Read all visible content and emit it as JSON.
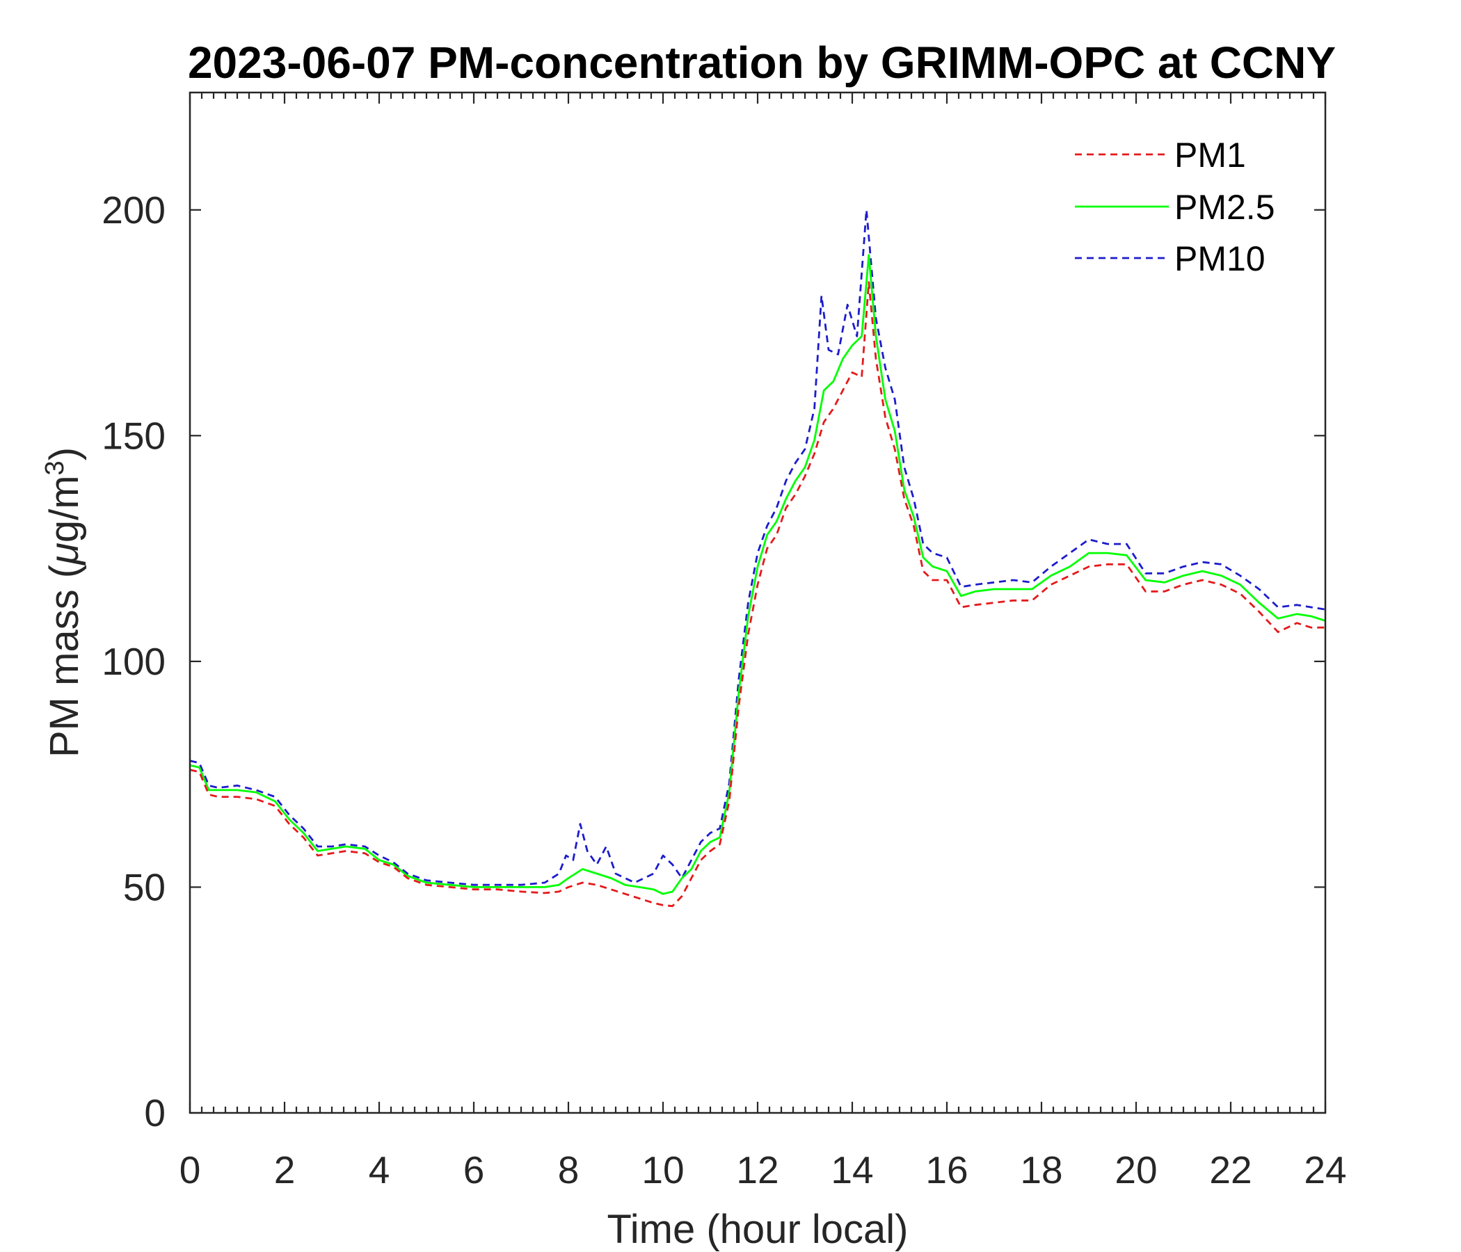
{
  "chart_data": {
    "type": "line",
    "title": "2023-06-07 PM-concentration by GRIMM-OPC at CCNY",
    "xlabel": "Time (hour local)",
    "ylabel": {
      "main": "PM mass (",
      "mu": "μ",
      "unit": "g/m",
      "sup": "3",
      "close": ")"
    },
    "xlim": [
      0,
      24
    ],
    "ylim": [
      0,
      226
    ],
    "xticks": [
      0,
      2,
      4,
      6,
      8,
      10,
      12,
      14,
      16,
      18,
      20,
      22,
      24
    ],
    "yticks": [
      0,
      50,
      100,
      150,
      200
    ],
    "grid": false,
    "legend_position": "top-right",
    "series": [
      {
        "name": "PM1",
        "color": "#e41a1c",
        "dash": "dashed",
        "x": [
          0,
          0.2,
          0.4,
          0.6,
          1.0,
          1.4,
          1.8,
          2.1,
          2.4,
          2.7,
          3.0,
          3.3,
          3.7,
          4.0,
          4.3,
          4.6,
          5.0,
          5.5,
          6.0,
          6.5,
          7.0,
          7.5,
          7.8,
          8.0,
          8.3,
          8.6,
          8.9,
          9.2,
          9.5,
          9.8,
          10.0,
          10.2,
          10.4,
          10.6,
          10.8,
          11.0,
          11.2,
          11.4,
          11.6,
          11.8,
          12.0,
          12.2,
          12.4,
          12.6,
          12.8,
          13.0,
          13.2,
          13.4,
          13.6,
          13.8,
          14.0,
          14.2,
          14.35,
          14.5,
          14.7,
          14.9,
          15.1,
          15.3,
          15.5,
          15.7,
          16.0,
          16.3,
          16.6,
          17.0,
          17.4,
          17.8,
          18.2,
          18.6,
          19.0,
          19.4,
          19.8,
          20.2,
          20.6,
          21.0,
          21.4,
          21.8,
          22.2,
          22.6,
          23.0,
          23.4,
          23.7,
          24.0
        ],
        "values": [
          76,
          75.5,
          70.5,
          70,
          70,
          69.5,
          68,
          64,
          61,
          57,
          57.5,
          58,
          57.5,
          55.5,
          54.5,
          52,
          50.5,
          50,
          49.5,
          49.5,
          49,
          48.7,
          49,
          50,
          51,
          50.5,
          49.5,
          48.5,
          47.5,
          46.5,
          46,
          45.8,
          48,
          52,
          56,
          58,
          59.5,
          69,
          90,
          106,
          117,
          125,
          128,
          134,
          137,
          141,
          146,
          153,
          156,
          160,
          164,
          163,
          184,
          167,
          154,
          147,
          136,
          130,
          120,
          118,
          118,
          112,
          112.5,
          113,
          113.5,
          113.5,
          117,
          119,
          121,
          121.5,
          121.5,
          115.5,
          115.5,
          117,
          118,
          117,
          115,
          111,
          106.5,
          108.5,
          107.5,
          107.5
        ]
      },
      {
        "name": "PM2.5",
        "color": "#00ff00",
        "dash": "solid",
        "x": [
          0,
          0.2,
          0.4,
          0.6,
          1.0,
          1.4,
          1.8,
          2.1,
          2.4,
          2.7,
          3.0,
          3.3,
          3.7,
          4.0,
          4.3,
          4.6,
          5.0,
          5.5,
          6.0,
          6.5,
          7.0,
          7.5,
          7.8,
          8.0,
          8.3,
          8.6,
          8.9,
          9.2,
          9.5,
          9.8,
          10.0,
          10.2,
          10.4,
          10.6,
          10.8,
          11.0,
          11.2,
          11.4,
          11.6,
          11.8,
          12.0,
          12.2,
          12.4,
          12.6,
          12.8,
          13.0,
          13.2,
          13.4,
          13.6,
          13.8,
          14.0,
          14.2,
          14.35,
          14.5,
          14.7,
          14.9,
          15.1,
          15.3,
          15.5,
          15.7,
          16.0,
          16.3,
          16.6,
          17.0,
          17.4,
          17.8,
          18.2,
          18.6,
          19.0,
          19.4,
          19.8,
          20.2,
          20.6,
          21.0,
          21.4,
          21.8,
          22.2,
          22.6,
          23.0,
          23.4,
          23.7,
          24.0
        ],
        "values": [
          77,
          76.5,
          71.5,
          71.5,
          71.5,
          71,
          69,
          65,
          62,
          58,
          58.5,
          59,
          58.5,
          56,
          55,
          52.5,
          51,
          50.5,
          50,
          50,
          50,
          50,
          50.5,
          52,
          54,
          53,
          52,
          50.5,
          50,
          49.5,
          48.5,
          49,
          52,
          54,
          58,
          60,
          61,
          71,
          93,
          110,
          121,
          128,
          131,
          136,
          140,
          143,
          149,
          160,
          162,
          167,
          170,
          172,
          190,
          172,
          158,
          151,
          138,
          132,
          123,
          121,
          120,
          114.5,
          115.5,
          116,
          116,
          116,
          119,
          121,
          124,
          124,
          123.5,
          118,
          117.5,
          119,
          120,
          119,
          117,
          113,
          109.5,
          110.5,
          110,
          109
        ]
      },
      {
        "name": "PM10",
        "color": "#1c1ccc",
        "dash": "dashed",
        "x": [
          0,
          0.2,
          0.4,
          0.6,
          1.0,
          1.4,
          1.8,
          2.1,
          2.4,
          2.7,
          3.0,
          3.3,
          3.7,
          4.0,
          4.3,
          4.6,
          5.0,
          5.5,
          6.0,
          6.5,
          7.0,
          7.5,
          7.8,
          7.95,
          8.1,
          8.25,
          8.4,
          8.6,
          8.8,
          9.0,
          9.2,
          9.4,
          9.6,
          9.8,
          10.0,
          10.2,
          10.4,
          10.6,
          10.8,
          11.0,
          11.2,
          11.4,
          11.6,
          11.8,
          12.0,
          12.2,
          12.4,
          12.6,
          12.8,
          13.0,
          13.2,
          13.35,
          13.5,
          13.7,
          13.9,
          14.1,
          14.3,
          14.5,
          14.7,
          14.9,
          15.1,
          15.3,
          15.5,
          15.7,
          16.0,
          16.3,
          16.6,
          17.0,
          17.4,
          17.8,
          18.2,
          18.6,
          19.0,
          19.4,
          19.8,
          20.2,
          20.6,
          21.0,
          21.4,
          21.8,
          22.2,
          22.6,
          23.0,
          23.4,
          23.7,
          24.0
        ],
        "values": [
          78,
          77.5,
          72.5,
          72,
          72.5,
          71.5,
          70,
          66,
          63,
          59,
          59,
          59.5,
          59,
          57,
          55.5,
          53,
          51.5,
          51,
          50.5,
          50.5,
          50.5,
          51,
          53,
          57,
          56,
          64,
          58,
          55,
          59,
          53,
          52,
          51,
          52,
          53,
          57,
          55,
          52,
          56,
          60,
          62,
          63,
          73,
          96,
          113,
          124,
          130,
          134,
          140,
          144,
          147,
          156,
          181,
          169,
          168,
          179,
          172,
          200,
          176,
          165,
          158,
          143,
          136,
          126,
          124,
          123,
          116.5,
          117,
          117.5,
          118,
          117.5,
          121,
          124,
          127,
          126,
          126,
          119.5,
          119.5,
          121,
          122,
          121.5,
          119,
          116,
          112,
          112.5,
          112,
          111.5
        ]
      }
    ]
  }
}
